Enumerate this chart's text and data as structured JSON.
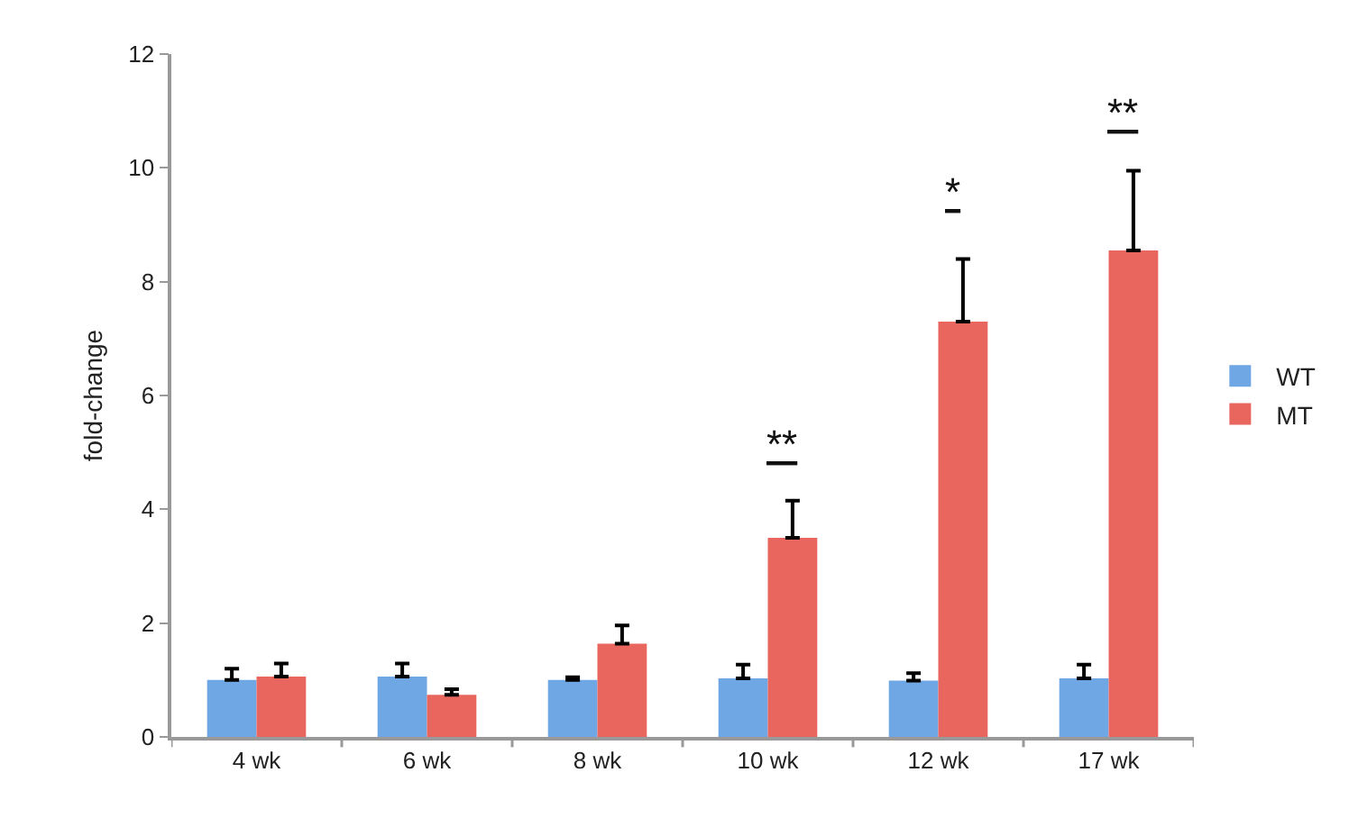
{
  "chart_data": {
    "type": "bar",
    "ylabel": "fold-change",
    "categories": [
      "4 wk",
      "6 wk",
      "8 wk",
      "10 wk",
      "12 wk",
      "17 wk"
    ],
    "series": [
      {
        "name": "WT",
        "color": "#6fa6e4",
        "values": [
          1.0,
          1.06,
          1.0,
          1.03,
          0.99,
          1.03
        ],
        "errors": [
          0.2,
          0.23,
          0.05,
          0.24,
          0.13,
          0.24
        ]
      },
      {
        "name": "MT",
        "color": "#e9665f",
        "values": [
          1.06,
          0.74,
          1.64,
          3.5,
          7.3,
          8.55
        ],
        "errors": [
          0.23,
          0.1,
          0.32,
          0.65,
          1.1,
          1.4
        ]
      }
    ],
    "ylim": [
      0,
      12
    ],
    "yticks": [
      0,
      2,
      4,
      6,
      8,
      10,
      12
    ],
    "grid": false,
    "legend": "right",
    "annotations": [
      "**",
      "*",
      "**"
    ]
  }
}
